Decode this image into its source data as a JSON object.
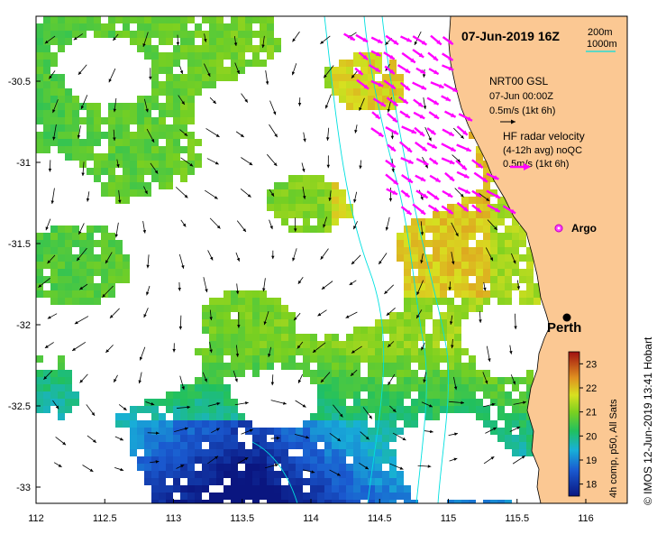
{
  "title": "07-Jun-2019 16Z",
  "legend": {
    "contour_200": "200m",
    "contour_1000": "1000m",
    "gsl_title": "NRT00 GSL",
    "gsl_date": "07-Jun 00:00Z",
    "gsl_scale": "0.5m/s (1kt 6h)",
    "hf_title": "HF radar velocity",
    "hf_sub": "(4-12h avg) noQC",
    "hf_scale": "0.5m/s (1kt 6h)",
    "argo": "Argo"
  },
  "place": {
    "name": "Perth",
    "lon": 115.86,
    "lat": -31.95
  },
  "axes": {
    "x_ticks": [
      "112",
      "112.5",
      "113",
      "113.5",
      "114",
      "114.5",
      "115",
      "115.5",
      "116"
    ],
    "y_ticks": [
      "-30.5",
      "-31",
      "-31.5",
      "-32",
      "-32.5",
      "-33"
    ],
    "xlim": [
      112,
      116.3
    ],
    "ylim": [
      -33.1,
      -30.1
    ]
  },
  "colorbar": {
    "label": "4h comp, p50, All Sats",
    "ticks": [
      "23",
      "22",
      "21",
      "20",
      "19",
      "18"
    ],
    "range": [
      17.5,
      23.5
    ]
  },
  "credit": "© IMOS 12-Jun-2019 13:41 Hobart",
  "colors": {
    "land": "#fbc893",
    "gsl_arrow": "#000000",
    "hf_arrow": "#ff00ff",
    "contour": "#00e0e0"
  }
}
